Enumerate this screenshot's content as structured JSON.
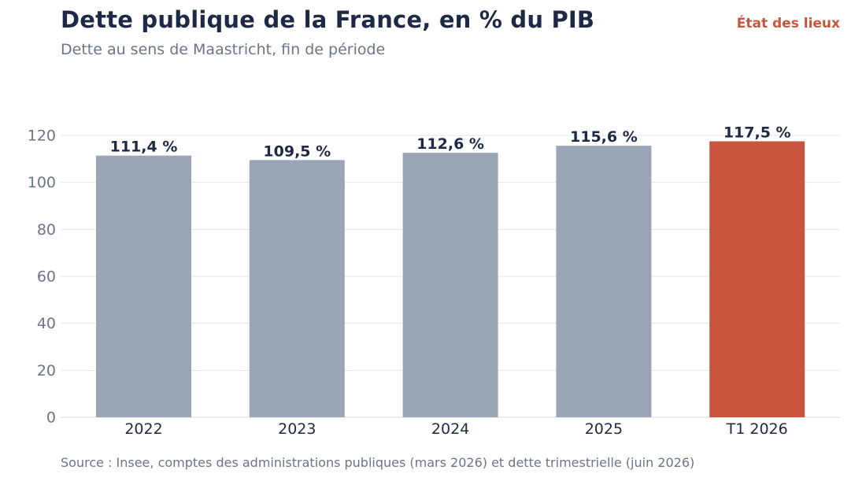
{
  "header": {
    "title": "Dette publique de la France, en % du PIB",
    "subtitle": "Dette au sens de Maastricht, fin de période",
    "tag": "État des lieux"
  },
  "footer": {
    "source": "Source : Insee, comptes des administrations publiques (mars 2026) et dette trimestrielle (juin 2026)"
  },
  "chart_data": {
    "type": "bar",
    "categories": [
      "2022",
      "2023",
      "2024",
      "2025",
      "T1 2026"
    ],
    "values": [
      111.4,
      109.5,
      112.6,
      115.6,
      117.5
    ],
    "value_labels": [
      "111,4 %",
      "109,5 %",
      "112,6 %",
      "115,6 %",
      "117,5 %"
    ],
    "highlight_index": 4,
    "yticks": [
      0,
      20,
      40,
      60,
      80,
      100,
      120
    ],
    "ylim": [
      0,
      120
    ],
    "grid": true,
    "colors": {
      "bar": "#9aa5b6",
      "highlight": "#c8553d",
      "grid": "#e3e6ea",
      "tick_text": "#6b7589",
      "category_text": "#1e2a45",
      "value_text": "#1e2a45"
    }
  }
}
